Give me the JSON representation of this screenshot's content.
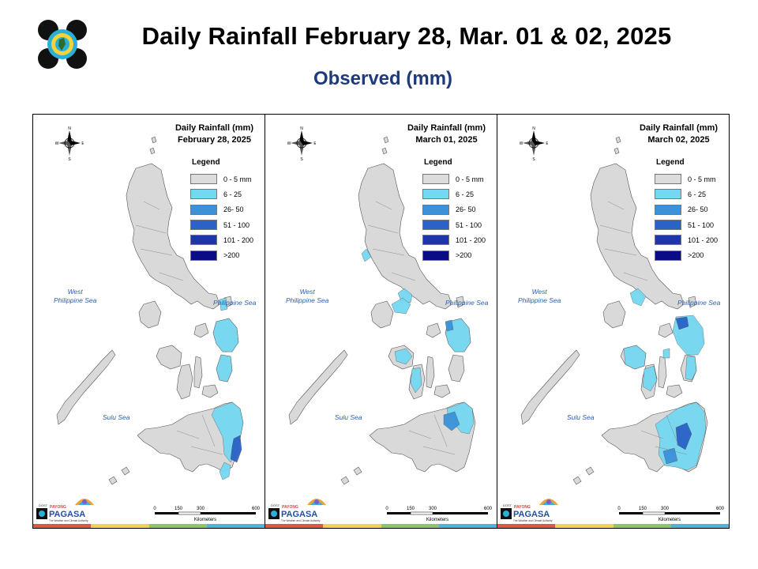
{
  "header": {
    "title": "Daily Rainfall February 28, Mar. 01 & 02, 2025",
    "subtitle": "Observed (mm)"
  },
  "panels": [
    {
      "title_line1": "Daily Rainfall (mm)",
      "title_line2": "February 28, 2025"
    },
    {
      "title_line1": "Daily Rainfall (mm)",
      "title_line2": "March 01, 2025"
    },
    {
      "title_line1": "Daily Rainfall (mm)",
      "title_line2": "March 02, 2025"
    }
  ],
  "legend": {
    "title": "Legend",
    "items": [
      {
        "label": "0 - 5 mm",
        "color": "#dcdcdc"
      },
      {
        "label": "6 - 25",
        "color": "#74d8f2"
      },
      {
        "label": "26- 50",
        "color": "#3c92da"
      },
      {
        "label": "51 - 100",
        "color": "#2a62c8"
      },
      {
        "label": "101 - 200",
        "color": "#1f36a6"
      },
      {
        "label": ">200",
        "color": "#0a0c86"
      }
    ]
  },
  "seas": {
    "west": "West\nPhilippine Sea",
    "philippine": "Philippine Sea",
    "sulu": "Sulu Sea"
  },
  "compass": {
    "n": "N",
    "s": "S",
    "e": "E",
    "w": "W"
  },
  "scale": {
    "ticks": [
      "0",
      "150",
      "300",
      "600"
    ],
    "unit": "Kilometers"
  },
  "footer_logo": {
    "brand": "PAGASA",
    "prefix": "DOST",
    "tagline": "PAYONG",
    "subtitle": "The Weather and Climate Authority"
  },
  "colors": {
    "land": "#d9d9d9",
    "outline": "#555555",
    "title_blue": "#1f3a7a",
    "sea_label": "#2a5fb0"
  }
}
